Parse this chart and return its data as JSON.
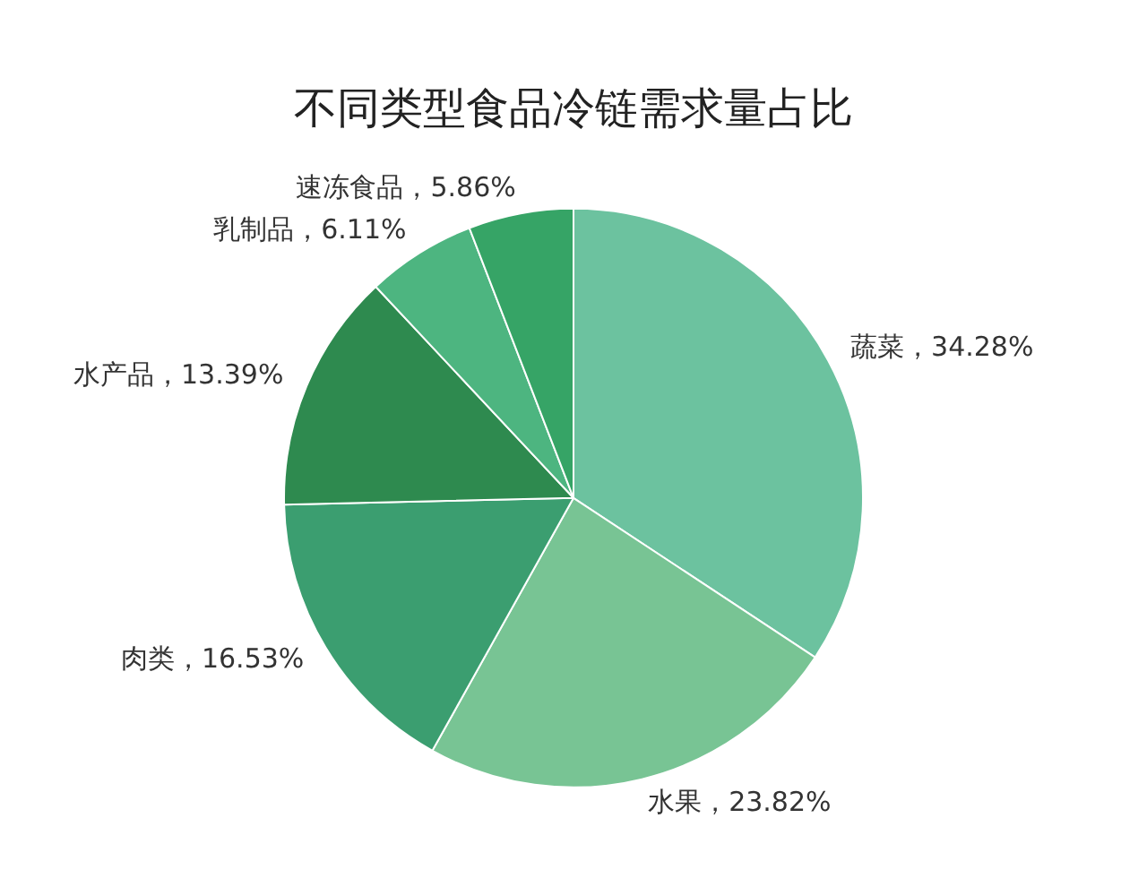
{
  "chart_data": {
    "type": "pie",
    "title": "不同类型食品冷链需求量占比",
    "categories": [
      "蔬菜",
      "水果",
      "肉类",
      "水产品",
      "乳制品",
      "速冻食品"
    ],
    "values": [
      34.28,
      23.82,
      16.53,
      13.39,
      6.11,
      5.86
    ],
    "value_labels": [
      "34.28%",
      "23.82%",
      "16.53%",
      "13.39%",
      "6.11%",
      "5.86%"
    ],
    "colors": [
      "#6cc29f",
      "#78c494",
      "#3b9e70",
      "#2e8a4f",
      "#4db580",
      "#36a466"
    ],
    "legend": false
  }
}
